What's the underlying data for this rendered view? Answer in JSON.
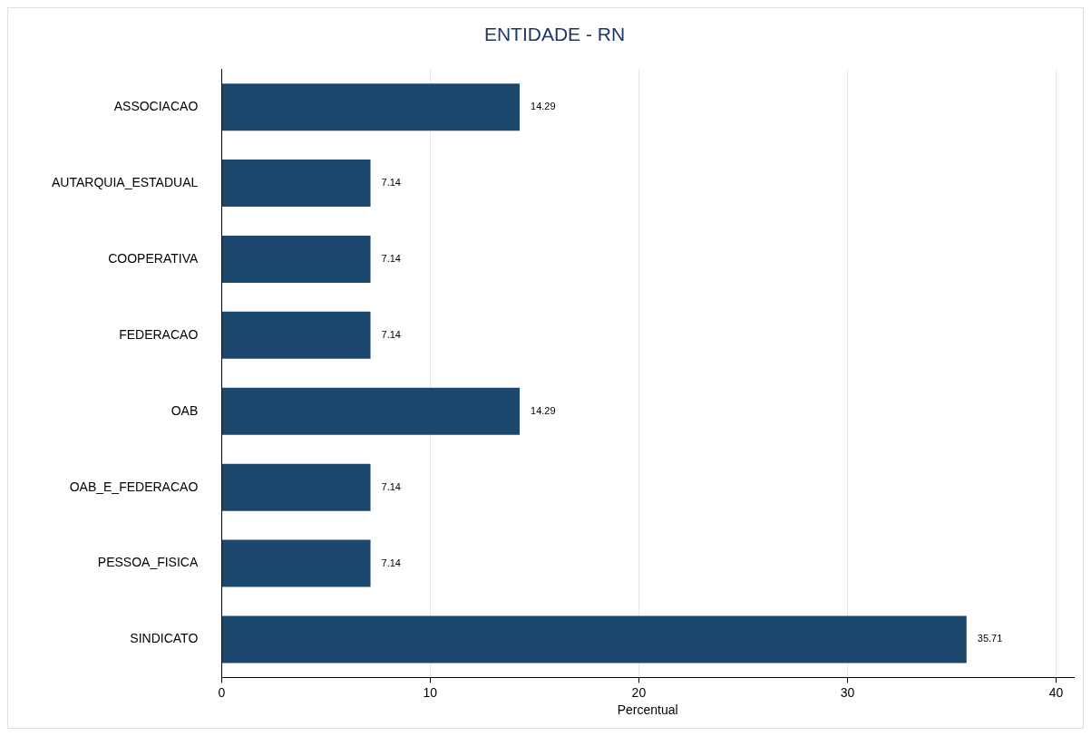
{
  "chart_data": {
    "type": "bar",
    "orientation": "horizontal",
    "title": "ENTIDADE - RN",
    "xlabel": "Percentual",
    "categories": [
      "ASSOCIACAO",
      "AUTARQUIA_ESTADUAL",
      "COOPERATIVA",
      "FEDERACAO",
      "OAB",
      "OAB_E_FEDERACAO",
      "PESSOA_FISICA",
      "SINDICATO"
    ],
    "values": [
      14.29,
      7.14,
      7.14,
      7.14,
      14.29,
      7.14,
      7.14,
      35.71
    ],
    "color": "#1c486d",
    "xlim": [
      0,
      40.85
    ],
    "xticks": [
      0,
      10,
      20,
      30,
      40
    ],
    "grid": "x",
    "data_labels": true,
    "legend": false
  }
}
